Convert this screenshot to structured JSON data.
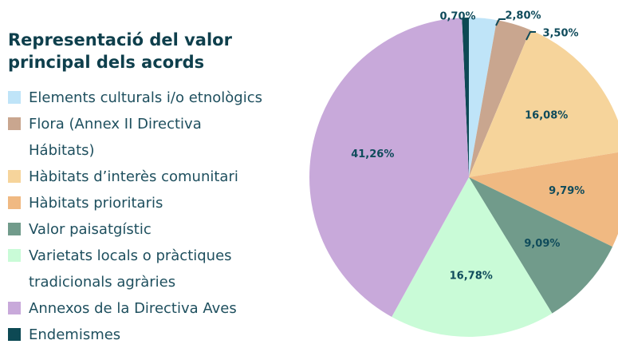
{
  "chart_data": {
    "type": "pie",
    "title": "Representació del valor principal dels acords",
    "categories": [
      "Elements culturals i/o etnològics",
      "Flora (Annex II Directiva Hábitats)",
      "Hàbitats d’interès comunitari",
      "Hàbitats prioritaris",
      "Valor paisatgístic",
      "Varietats locals o pràctiques tradicionals agràries",
      "Annexos de la Directiva Aves",
      "Endemismes"
    ],
    "values": [
      2.8,
      3.5,
      16.08,
      9.79,
      9.09,
      16.78,
      41.26,
      0.7
    ],
    "value_labels": [
      "2,80%",
      "3,50%",
      "16,08%",
      "9,79%",
      "9,09%",
      "16,78%",
      "41,26%",
      "0,70%"
    ],
    "colors": [
      "#bfe4f8",
      "#c9a68f",
      "#f6d49b",
      "#f0b982",
      "#719b8b",
      "#c9fbd7",
      "#c8a9da",
      "#0d4954"
    ]
  }
}
